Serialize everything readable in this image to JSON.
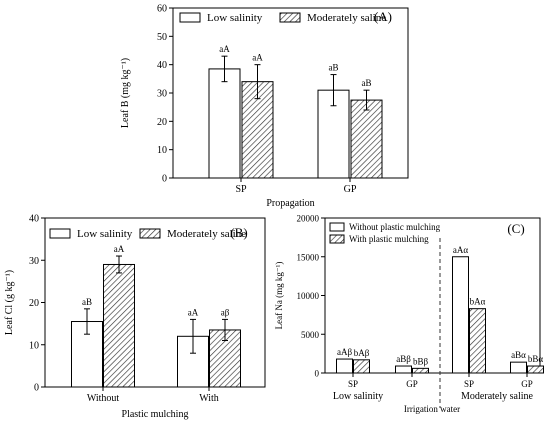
{
  "chart_data": [
    {
      "type": "bar",
      "panel": "(A)",
      "xlabel": "Propagation",
      "ylabel": "Leaf B (mg kg⁻¹)",
      "ylim": [
        0,
        60
      ],
      "yticks": [
        0,
        10,
        20,
        30,
        40,
        50,
        60
      ],
      "categories": [
        "SP",
        "GP"
      ],
      "legend": "top",
      "series": [
        {
          "name": "Low salinity",
          "pattern": "white",
          "values": [
            38.5,
            31
          ],
          "errors": [
            4.5,
            5.5
          ],
          "labels": [
            "aA",
            "aB"
          ]
        },
        {
          "name": "Moderately saline",
          "pattern": "hatch",
          "values": [
            34,
            27.5
          ],
          "errors": [
            6,
            3.5
          ],
          "labels": [
            "aA",
            "aB"
          ]
        }
      ]
    },
    {
      "type": "bar",
      "panel": "(B)",
      "xlabel": "Plastic mulching",
      "ylabel": "Leaf Cl (g kg⁻¹)",
      "ylim": [
        0,
        40
      ],
      "yticks": [
        0,
        10,
        20,
        30,
        40
      ],
      "categories": [
        "Without",
        "With"
      ],
      "legend": "top",
      "series": [
        {
          "name": "Low salinity",
          "pattern": "white",
          "values": [
            15.5,
            12
          ],
          "errors": [
            3,
            4
          ],
          "labels": [
            "aB",
            "aA"
          ]
        },
        {
          "name": "Moderately saline",
          "pattern": "hatch",
          "values": [
            29,
            13.5
          ],
          "errors": [
            2,
            2.5
          ],
          "labels": [
            "aA",
            "aβ"
          ]
        }
      ]
    },
    {
      "type": "bar",
      "panel": "(C)",
      "xlabel": "Irrigation water",
      "ylabel": "Leaf Na (mg kg⁻¹)",
      "ylim": [
        0,
        20000
      ],
      "yticks": [
        0,
        5000,
        10000,
        15000,
        20000
      ],
      "categories": [
        "SP",
        "GP",
        "SP",
        "GP"
      ],
      "groups": [
        "Low salinity",
        "Moderately saline"
      ],
      "legend": "top-left",
      "series": [
        {
          "name": "Without plastic mulching",
          "pattern": "white",
          "values": [
            1800,
            900,
            15000,
            1400
          ],
          "labels": [
            "aAβ",
            "aBβ",
            "aAα",
            "aBα"
          ]
        },
        {
          "name": "With plastic mulching",
          "pattern": "hatch",
          "values": [
            1700,
            600,
            8300,
            900
          ],
          "labels": [
            "bAβ",
            "bBβ",
            "bAα",
            "bBα"
          ]
        }
      ]
    }
  ]
}
